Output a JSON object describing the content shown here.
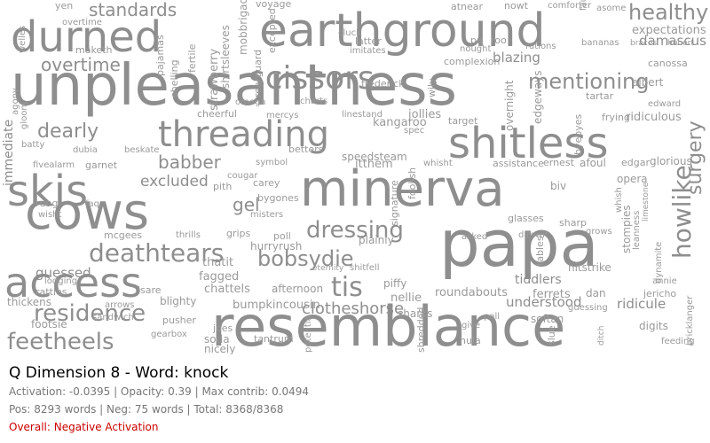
{
  "title": "Q Dimension 8 - Word: knock",
  "stats_line1": "Activation: -0.0395 | Opacity: 0.39 | Max contrib: 0.0494",
  "stats_line2": "Pos: 8293 words | Neg: 75 words | Total: 8368/8368",
  "overall": "Overall: Negative Activation",
  "colors": {
    "word": "#8e8e8e",
    "overall": "#cc0000",
    "title": "#000000",
    "stats": "#777777"
  },
  "words": [
    "unpleasantness",
    "resemblance",
    "cows",
    "minerva",
    "papa",
    "earthground",
    "durned",
    "skis",
    "shitless",
    "threading",
    "access",
    "scissors",
    "deathtears",
    "dressing",
    "residence",
    "feetheels",
    "bobsydie",
    "tis",
    "howlike",
    "surgery",
    "standards",
    "healthy",
    "overtime",
    "mentioning",
    "dearly",
    "babber",
    "gel",
    "excluded",
    "clotheshorse",
    "bumpkincousin",
    "understood",
    "tiddlers",
    "ferrets",
    "roundabouts",
    "nellie",
    "sharks",
    "afternoon",
    "chattels",
    "fagged",
    "thatit",
    "guessed",
    "rattles",
    "thickens",
    "footsie",
    "tantrum",
    "soda",
    "nicely",
    "joes",
    "shredded",
    "potentia",
    "hula",
    "pall",
    "softan",
    "ridicule",
    "ridiculous",
    "glorious",
    "opera",
    "damascus",
    "expectations",
    "canossa",
    "braces",
    "hubert",
    "blazing",
    "complexion",
    "atnear",
    "voyage",
    "comforter",
    "nowt",
    "asome",
    "fauntleroy",
    "yen",
    "welles",
    "agony",
    "gloom",
    "immediate",
    "fivealarm",
    "lodging",
    "batty",
    "garnet",
    "strawberry",
    "shirtsleeves",
    "mobbrigade",
    "excepted",
    "rearguard",
    "pajamas",
    "shelling",
    "fertile",
    "maketh",
    "cheerful",
    "mercys",
    "omega",
    "charts",
    "linestand",
    "itthem",
    "kangaroo",
    "jollies",
    "speedsteam",
    "betters",
    "symbol",
    "carey",
    "bygones",
    "misters",
    "poll",
    "hurryrush",
    "eternity",
    "shitfell",
    "piffy",
    "plainly",
    "signature",
    "foolish",
    "biv",
    "dimwit",
    "stompies",
    "grows",
    "hitstrike",
    "dan",
    "jericho",
    "annie",
    "digits",
    "feeding",
    "bricklanger",
    "edward",
    "albert",
    "frying",
    "tartar",
    "assistance",
    "ernest",
    "afoul",
    "edgar",
    "whisht",
    "overnight",
    "edgeways",
    "wily",
    "frederick",
    "imitates",
    "latter",
    "cluck",
    "nought",
    "pa",
    "roo",
    "rations",
    "bananas",
    "overtime",
    "mcgees",
    "grips",
    "thrills",
    "pith",
    "cougar",
    "faq",
    "rung",
    "wisht",
    "dubia",
    "beskate",
    "arrows",
    "sandwich",
    "blighty",
    "isare",
    "pusher",
    "gearbox",
    "give",
    "glasses",
    "slue",
    "guessing",
    "ditch",
    "limestone",
    "sharp",
    "tables",
    "byebyes",
    "target",
    "spec",
    "asked",
    "whish",
    "leanness",
    "dynamite",
    "politic"
  ]
}
